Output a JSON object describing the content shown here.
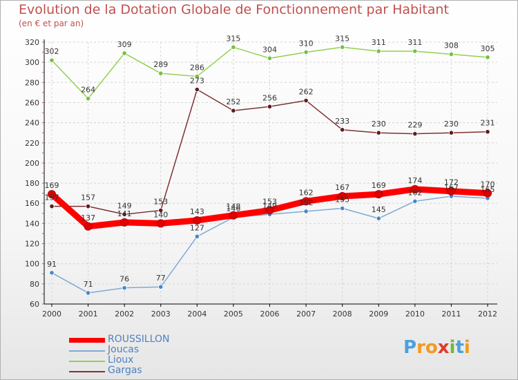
{
  "chart_data": {
    "type": "line",
    "title": "Evolution de la Dotation Globale de Fonctionnement par Habitant",
    "subtitle": "(en € et par an)",
    "x": [
      "2000",
      "2001",
      "2002",
      "2003",
      "2004",
      "2005",
      "2006",
      "2007",
      "2008",
      "2009",
      "2010",
      "2011",
      "2012"
    ],
    "ylim": [
      60,
      320
    ],
    "yticks": [
      60,
      80,
      100,
      120,
      140,
      160,
      180,
      200,
      220,
      240,
      260,
      280,
      300,
      320
    ],
    "grid": true,
    "series": [
      {
        "name": "Lioux",
        "color": "#92d050",
        "marker_color": "#76c043",
        "values": [
          302,
          264,
          309,
          289,
          286,
          315,
          304,
          310,
          315,
          311,
          311,
          308,
          305
        ],
        "labels": [
          "302",
          "264",
          "309",
          "289",
          "286",
          "315",
          "304",
          "310",
          "315",
          "311",
          "311",
          "308",
          "305"
        ]
      },
      {
        "name": "Gargas",
        "color": "#7f3033",
        "marker_color": "#5e1c1e",
        "values": [
          157,
          157,
          149,
          153,
          273,
          252,
          256,
          262,
          233,
          230,
          229,
          230,
          231
        ],
        "labels": [
          "157",
          "157",
          "149",
          "153",
          "273",
          "252",
          "256",
          "262",
          "233",
          "230",
          "229",
          "230",
          "231"
        ]
      },
      {
        "name": "Joucas",
        "color": "#7fa9d6",
        "marker_color": "#4a86c8",
        "values": [
          91,
          71,
          76,
          77,
          127,
          146,
          149,
          152,
          155,
          145,
          162,
          167,
          165
        ],
        "labels": [
          "91",
          "71",
          "76",
          "77",
          "127",
          "146",
          "149",
          "152",
          "155",
          "145",
          "162",
          "167",
          "165"
        ]
      },
      {
        "name": "ROUSSILLON",
        "color": "#ff0000",
        "marker_color": "#e00000",
        "values": [
          169,
          137,
          141,
          140,
          143,
          148,
          153,
          162,
          167,
          169,
          174,
          172,
          170
        ],
        "labels": [
          "169",
          "137",
          "141",
          "140",
          "143",
          "148",
          "153",
          "162",
          "167",
          "169",
          "174",
          "172",
          "170"
        ]
      }
    ],
    "legend": [
      "ROUSSILLON",
      "Joucas",
      "Lioux",
      "Gargas"
    ],
    "legend_colors": [
      "#ff0000",
      "#4f81bd",
      "#92d050",
      "#7f3033"
    ],
    "legend_position": "bottom-left"
  },
  "logo": {
    "letters": [
      "P",
      "r",
      "o",
      "x",
      "i",
      "t",
      "i"
    ],
    "colors": [
      "#4aa0e0",
      "#f39a1e",
      "#f39a1e",
      "#e03a2a",
      "#70b83a",
      "#4aa0e0",
      "#f39a1e"
    ]
  }
}
